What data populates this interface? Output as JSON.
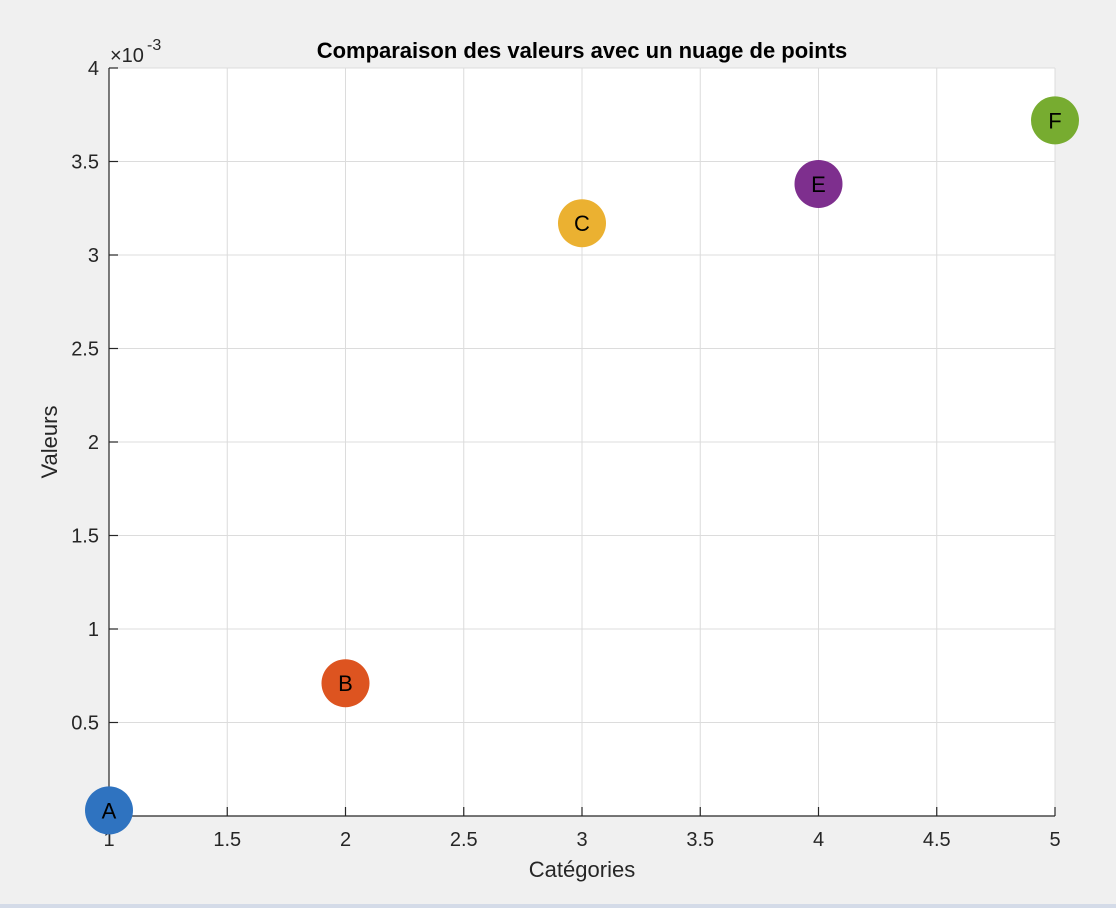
{
  "chart_data": {
    "type": "scatter",
    "title": "Comparaison des valeurs avec un nuage de points",
    "xlabel": "Catégories",
    "ylabel": "Valeurs",
    "exponent_label": "×10",
    "exponent_power": "-3",
    "xlim": [
      1,
      5
    ],
    "ylim": [
      0,
      4
    ],
    "grid": true,
    "x_ticks": [
      "1",
      "1.5",
      "2",
      "2.5",
      "3",
      "3.5",
      "4",
      "4.5",
      "5"
    ],
    "x_tick_values": [
      1,
      1.5,
      2,
      2.5,
      3,
      3.5,
      4,
      4.5,
      5
    ],
    "y_ticks": [
      "0.5",
      "1",
      "1.5",
      "2",
      "2.5",
      "3",
      "3.5",
      "4"
    ],
    "y_tick_values": [
      0.5,
      1,
      1.5,
      2,
      2.5,
      3,
      3.5,
      4
    ],
    "points": [
      {
        "label": "A",
        "x": 1,
        "y": 0.03,
        "color": "#2f73c0"
      },
      {
        "label": "B",
        "x": 2,
        "y": 0.71,
        "color": "#dd5420"
      },
      {
        "label": "C",
        "x": 3,
        "y": 3.17,
        "color": "#ebb131"
      },
      {
        "label": "E",
        "x": 4,
        "y": 3.38,
        "color": "#7e2f8e"
      },
      {
        "label": "F",
        "x": 5,
        "y": 3.72,
        "color": "#77ac30"
      }
    ]
  }
}
